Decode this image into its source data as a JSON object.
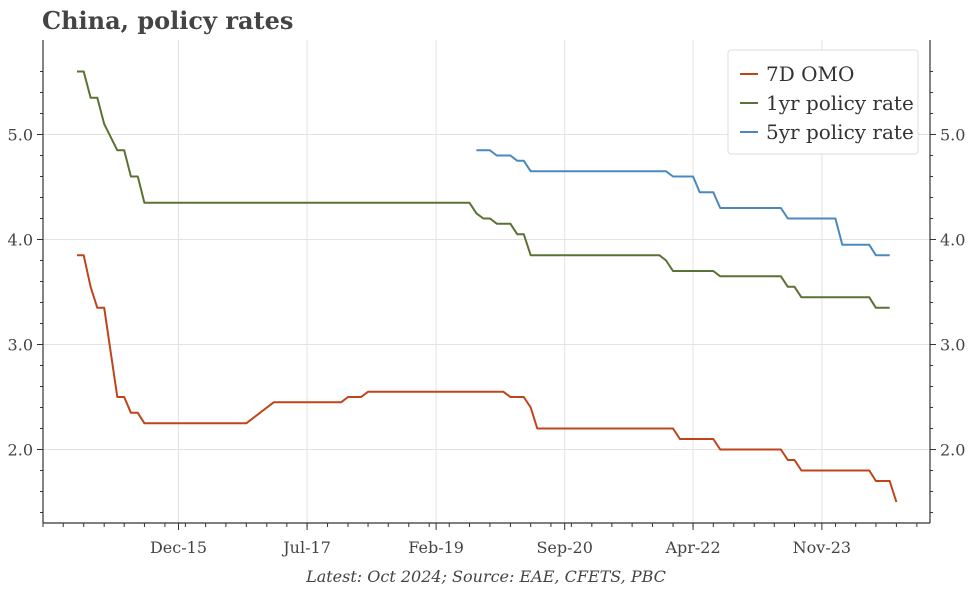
{
  "chart_data": {
    "type": "line",
    "title": "China, policy rates",
    "source": "Latest: Oct 2024; Source: EAE, CFETS, PBC",
    "xlabel": "",
    "ylabel": "",
    "x_ticks": [
      "Dec-15",
      "Jul-17",
      "Feb-19",
      "Sep-20",
      "Apr-22",
      "Nov-23"
    ],
    "y_ticks": [
      "2.0",
      "3.0",
      "4.0",
      "5.0"
    ],
    "y_axis_right": true,
    "ylim": [
      1.3,
      5.9
    ],
    "xlim": [
      "2014-04-01",
      "2025-03-01"
    ],
    "grid": true,
    "legend_position": "top-right",
    "series": [
      {
        "name": "7D OMO",
        "color": "#c0441a",
        "points": [
          [
            "2014-09-01",
            3.85
          ],
          [
            "2014-10-01",
            3.85
          ],
          [
            "2014-11-01",
            3.55
          ],
          [
            "2014-12-01",
            3.35
          ],
          [
            "2015-01-01",
            3.35
          ],
          [
            "2015-03-01",
            2.5
          ],
          [
            "2015-04-01",
            2.5
          ],
          [
            "2015-05-01",
            2.35
          ],
          [
            "2015-06-01",
            2.35
          ],
          [
            "2015-07-01",
            2.25
          ],
          [
            "2016-10-01",
            2.25
          ],
          [
            "2017-02-01",
            2.45
          ],
          [
            "2017-12-01",
            2.45
          ],
          [
            "2018-01-01",
            2.5
          ],
          [
            "2018-03-01",
            2.5
          ],
          [
            "2018-04-01",
            2.55
          ],
          [
            "2019-12-01",
            2.55
          ],
          [
            "2020-01-01",
            2.5
          ],
          [
            "2020-03-01",
            2.5
          ],
          [
            "2020-04-01",
            2.4
          ],
          [
            "2020-05-01",
            2.2
          ],
          [
            "2022-01-01",
            2.2
          ],
          [
            "2022-02-01",
            2.1
          ],
          [
            "2022-07-01",
            2.1
          ],
          [
            "2022-08-01",
            2.0
          ],
          [
            "2023-05-01",
            2.0
          ],
          [
            "2023-06-01",
            1.9
          ],
          [
            "2023-07-01",
            1.9
          ],
          [
            "2023-08-01",
            1.8
          ],
          [
            "2024-06-01",
            1.8
          ],
          [
            "2024-07-01",
            1.7
          ],
          [
            "2024-09-01",
            1.7
          ],
          [
            "2024-10-01",
            1.5
          ]
        ]
      },
      {
        "name": "1yr policy rate",
        "color": "#5a7233",
        "points": [
          [
            "2014-09-01",
            5.6
          ],
          [
            "2014-10-01",
            5.6
          ],
          [
            "2014-11-01",
            5.35
          ],
          [
            "2014-12-01",
            5.35
          ],
          [
            "2015-01-01",
            5.1
          ],
          [
            "2015-03-01",
            4.85
          ],
          [
            "2015-04-01",
            4.85
          ],
          [
            "2015-05-01",
            4.6
          ],
          [
            "2015-06-01",
            4.6
          ],
          [
            "2015-07-01",
            4.35
          ],
          [
            "2019-07-01",
            4.35
          ],
          [
            "2019-08-01",
            4.25
          ],
          [
            "2019-09-01",
            4.2
          ],
          [
            "2019-10-01",
            4.2
          ],
          [
            "2019-11-01",
            4.15
          ],
          [
            "2020-01-01",
            4.15
          ],
          [
            "2020-02-01",
            4.05
          ],
          [
            "2020-03-01",
            4.05
          ],
          [
            "2020-04-01",
            3.85
          ],
          [
            "2021-11-01",
            3.85
          ],
          [
            "2021-12-01",
            3.8
          ],
          [
            "2022-01-01",
            3.7
          ],
          [
            "2022-07-01",
            3.7
          ],
          [
            "2022-08-01",
            3.65
          ],
          [
            "2023-05-01",
            3.65
          ],
          [
            "2023-06-01",
            3.55
          ],
          [
            "2023-07-01",
            3.55
          ],
          [
            "2023-08-01",
            3.45
          ],
          [
            "2024-06-01",
            3.45
          ],
          [
            "2024-07-01",
            3.35
          ],
          [
            "2024-09-01",
            3.35
          ]
        ]
      },
      {
        "name": "5yr policy rate",
        "color": "#4a88bf",
        "points": [
          [
            "2019-08-01",
            4.85
          ],
          [
            "2019-10-01",
            4.85
          ],
          [
            "2019-11-01",
            4.8
          ],
          [
            "2020-01-01",
            4.8
          ],
          [
            "2020-02-01",
            4.75
          ],
          [
            "2020-03-01",
            4.75
          ],
          [
            "2020-04-01",
            4.65
          ],
          [
            "2021-12-01",
            4.65
          ],
          [
            "2022-01-01",
            4.6
          ],
          [
            "2022-04-01",
            4.6
          ],
          [
            "2022-05-01",
            4.45
          ],
          [
            "2022-06-01",
            4.45
          ],
          [
            "2022-07-01",
            4.45
          ],
          [
            "2022-08-01",
            4.3
          ],
          [
            "2023-05-01",
            4.3
          ],
          [
            "2023-06-01",
            4.2
          ],
          [
            "2024-01-01",
            4.2
          ],
          [
            "2024-02-01",
            3.95
          ],
          [
            "2024-06-01",
            3.95
          ],
          [
            "2024-07-01",
            3.85
          ],
          [
            "2024-09-01",
            3.85
          ]
        ]
      }
    ]
  }
}
